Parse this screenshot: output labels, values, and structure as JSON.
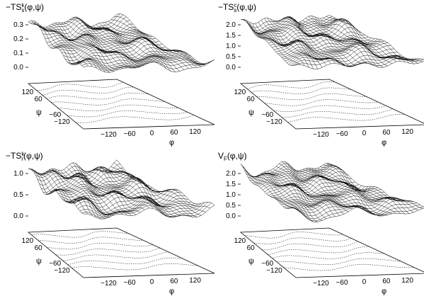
{
  "chart_data": [
    {
      "type": "surface",
      "title_main": "−TS",
      "title_sub": "s",
      "title_sup": "k",
      "title_args": "(φ,ψ)",
      "xlabel": "φ",
      "ylabel": "ψ",
      "x_ticks": [
        "−120",
        "−60",
        "0",
        "60",
        "120"
      ],
      "y_ticks": [
        "120",
        "60",
        "−60",
        "−120"
      ],
      "z_ticks": [
        "0.3",
        "0.2",
        "0.1",
        "0.0"
      ],
      "zlim": [
        -0.15,
        0.3
      ],
      "base": 0.08,
      "amp": 0.09,
      "seed": 1.3
    },
    {
      "type": "surface",
      "title_main": "−TS",
      "title_sub": "s",
      "title_sup": "c",
      "title_args": "(φ,ψ)",
      "xlabel": "φ",
      "ylabel": "ψ",
      "x_ticks": [
        "−120",
        "−60",
        "0",
        "60",
        "120"
      ],
      "y_ticks": [
        "120",
        "60",
        "−60",
        "−120"
      ],
      "z_ticks": [
        "2.0",
        "1.5",
        "1.0",
        "0.5",
        "0.0"
      ],
      "zlim": [
        -0.5,
        2.0
      ],
      "base": 0.95,
      "amp": 0.55,
      "seed": 2.7
    },
    {
      "type": "surface",
      "title_main": "−TS",
      "title_sub": "r",
      "title_sup": "k",
      "title_args": "(φ,ψ)",
      "xlabel": "φ",
      "ylabel": "ψ",
      "x_ticks": [
        "−120",
        "−60",
        "0",
        "60",
        "120"
      ],
      "y_ticks": [
        "120",
        "60",
        "−60",
        "−120"
      ],
      "z_ticks": [
        "1.0",
        "0.5",
        "0.0"
      ],
      "zlim": [
        -0.5,
        1.0
      ],
      "base": 0.35,
      "amp": 0.38,
      "seed": 4.1
    },
    {
      "type": "surface",
      "title_main": "V",
      "title_sub": "F",
      "title_sup": "",
      "title_args": "(φ,ψ)",
      "xlabel": "φ",
      "ylabel": "ψ",
      "x_ticks": [
        "−120",
        "−60",
        "0",
        "60",
        "120"
      ],
      "y_ticks": [
        "120",
        "60",
        "−60",
        "−120"
      ],
      "z_ticks": [
        "2.0",
        "1.5",
        "1.0",
        "0.5",
        "0.0"
      ],
      "zlim": [
        -0.5,
        2.0
      ],
      "base": 0.95,
      "amp": 0.5,
      "seed": 5.6
    }
  ]
}
